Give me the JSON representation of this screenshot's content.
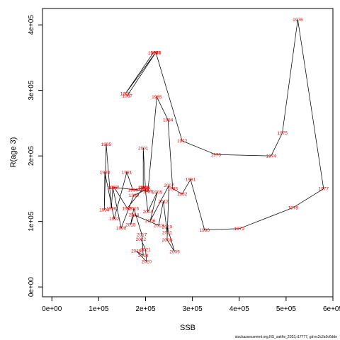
{
  "chart_data": {
    "type": "scatter",
    "title": "",
    "xlabel": "SSB",
    "ylabel": "R(age 3)",
    "xlim": [
      -20000,
      600000
    ],
    "ylim": [
      -15000,
      425000
    ],
    "x_ticks": [
      0,
      100000,
      200000,
      300000,
      400000,
      500000,
      600000
    ],
    "x_tick_labels": [
      "0e+00",
      "1e+05",
      "2e+05",
      "3e+05",
      "4e+05",
      "5e+05",
      "6e+05"
    ],
    "y_ticks": [
      0,
      100000,
      200000,
      300000,
      400000
    ],
    "y_tick_labels": [
      "0e+00",
      "1e+05",
      "2e+05",
      "3e+05",
      "4e+05"
    ],
    "grid": false,
    "line_color": "#000000",
    "label_color": "#ff0000",
    "credit": "stockassessment.org,NS_saithe_2023,r17777, git:ec2c2a0c6dde",
    "points": [
      {
        "year": "1967",
        "ssb": 161000,
        "rec": 292000
      },
      {
        "year": "1968",
        "ssb": 222000,
        "rec": 358000
      },
      {
        "year": "1969",
        "ssb": 216000,
        "rec": 357000
      },
      {
        "year": "1970",
        "ssb": 157000,
        "rec": 295000
      },
      {
        "year": "1971",
        "ssb": 222000,
        "rec": 358000
      },
      {
        "year": "1972",
        "ssb": 278000,
        "rec": 223000
      },
      {
        "year": "1973",
        "ssb": 350000,
        "rec": 202000
      },
      {
        "year": "1974",
        "ssb": 468000,
        "rec": 200000
      },
      {
        "year": "1975",
        "ssb": 492000,
        "rec": 235000
      },
      {
        "year": "1976",
        "ssb": 525000,
        "rec": 408000
      },
      {
        "year": "1977",
        "ssb": 580000,
        "rec": 150000
      },
      {
        "year": "1978",
        "ssb": 515000,
        "rec": 121000
      },
      {
        "year": "1979",
        "ssb": 400000,
        "rec": 89000
      },
      {
        "year": "1980",
        "ssb": 326000,
        "rec": 87000
      },
      {
        "year": "1981",
        "ssb": 296000,
        "rec": 164000
      },
      {
        "year": "1982",
        "ssb": 278000,
        "rec": 142000
      },
      {
        "year": "1983",
        "ssb": 258000,
        "rec": 150000
      },
      {
        "year": "1984",
        "ssb": 248000,
        "rec": 255000
      },
      {
        "year": "1985",
        "ssb": 224000,
        "rec": 290000
      },
      {
        "year": "1986",
        "ssb": 205000,
        "rec": 146000
      },
      {
        "year": "1987",
        "ssb": 133000,
        "rec": 152000
      },
      {
        "year": "1988",
        "ssb": 161000,
        "rec": 120000
      },
      {
        "year": "1989",
        "ssb": 195000,
        "rec": 151000
      },
      {
        "year": "1990",
        "ssb": 173000,
        "rec": 148000
      },
      {
        "year": "1991",
        "ssb": 160000,
        "rec": 175000
      },
      {
        "year": "1992",
        "ssb": 133000,
        "rec": 104000
      },
      {
        "year": "1993",
        "ssb": 113000,
        "rec": 175000
      },
      {
        "year": "1994",
        "ssb": 112000,
        "rec": 118000
      },
      {
        "year": "1995",
        "ssb": 116000,
        "rec": 218000
      },
      {
        "year": "1996",
        "ssb": 127000,
        "rec": 120000
      },
      {
        "year": "1997",
        "ssb": 130000,
        "rec": 152000
      },
      {
        "year": "1998",
        "ssb": 148000,
        "rec": 90000
      },
      {
        "year": "1999",
        "ssb": 175000,
        "rec": 140000
      },
      {
        "year": "2000",
        "ssb": 200000,
        "rec": 148000
      },
      {
        "year": "2001",
        "ssb": 195000,
        "rec": 212000
      },
      {
        "year": "2002",
        "ssb": 195000,
        "rec": 152000
      },
      {
        "year": "2003",
        "ssb": 199000,
        "rec": 152000
      },
      {
        "year": "2004",
        "ssb": 205000,
        "rec": 115000
      },
      {
        "year": "2005",
        "ssb": 225000,
        "rec": 145000
      },
      {
        "year": "2006",
        "ssb": 210000,
        "rec": 101000
      },
      {
        "year": "2007",
        "ssb": 250000,
        "rec": 155000
      },
      {
        "year": "2008",
        "ssb": 246000,
        "rec": 72000
      },
      {
        "year": "2009",
        "ssb": 262000,
        "rec": 54000
      },
      {
        "year": "2010",
        "ssb": 246000,
        "rec": 92000
      },
      {
        "year": "2011",
        "ssb": 246000,
        "rec": 83000
      },
      {
        "year": "2012",
        "ssb": 238000,
        "rec": 131000
      },
      {
        "year": "2013",
        "ssb": 228000,
        "rec": 94000
      },
      {
        "year": "2014",
        "ssb": 175000,
        "rec": 110000
      },
      {
        "year": "2015",
        "ssb": 168000,
        "rec": 95000
      },
      {
        "year": "2016",
        "ssb": 175000,
        "rec": 120000
      },
      {
        "year": "2017",
        "ssb": 192000,
        "rec": 80000
      },
      {
        "year": "2018",
        "ssb": 195000,
        "rec": 48000
      },
      {
        "year": "2019",
        "ssb": 180000,
        "rec": 55000
      },
      {
        "year": "2020",
        "ssb": 202000,
        "rec": 39000
      },
      {
        "year": "2021",
        "ssb": 200000,
        "rec": 57000
      },
      {
        "year": "2022",
        "ssb": 190000,
        "rec": 73000
      }
    ]
  }
}
